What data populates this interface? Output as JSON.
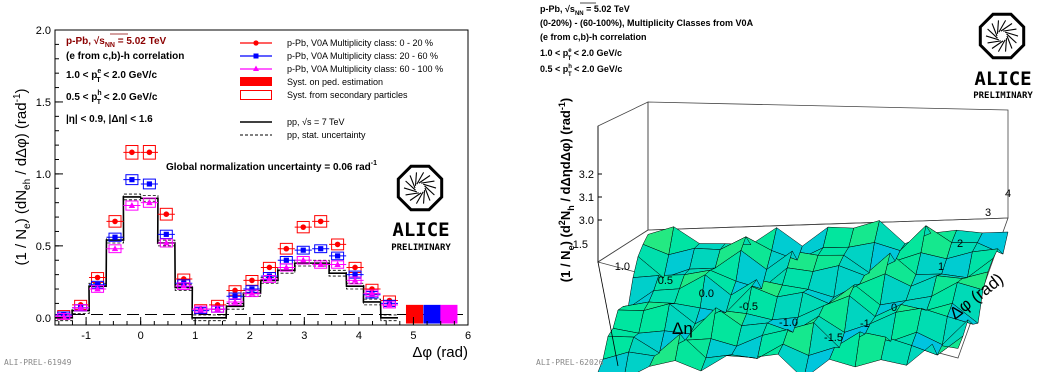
{
  "left_panel": {
    "system_line": "p-Pb, √s",
    "system_sub": "NN",
    "system_energy": " = 5.02 TeV",
    "corr_line": "(e from c,b)-h correlation",
    "pt_e": "1.0 < p",
    "pt_e_sup": "e",
    "pt_e_sub": "T",
    "pt_e_tail": " < 2.0 GeV/c",
    "pt_h": "0.5 < p",
    "pt_h_sup": "h",
    "pt_h_sub": "T",
    "pt_h_tail": " < 2.0 GeV/c",
    "eta_cut": "|η| < 0.9, |Δη| < 1.6",
    "global_norm": "Global normalization uncertainty = 0.06 rad",
    "global_norm_sup": "-1",
    "legend": [
      {
        "label": "p-Pb, V0A Multiplicity class: 0 - 20 %",
        "color": "#ff0000"
      },
      {
        "label": "p-Pb, V0A Multiplicity class: 20 - 60 %",
        "color": "#0000ff"
      },
      {
        "label": "p-Pb, V0A Multiplicity class: 60 - 100 %",
        "color": "#ff00ff"
      },
      {
        "label": "Syst. on ped. estimation",
        "color": "#ff0000"
      },
      {
        "label": "Syst. from secondary particles",
        "color": "#ff0000"
      },
      {
        "label": "pp, √s = 7 TeV",
        "color": "#000000"
      },
      {
        "label": "pp, stat. uncertainty",
        "color": "#000000"
      }
    ],
    "ylabel": "(1 / N",
    "ylabel_sub_e": "e",
    "ylabel_mid": ") (dN",
    "ylabel_sub_eh": "eh",
    "ylabel_tail": " / dΔφ) (rad",
    "ylabel_sup": "-1",
    "ylabel_close": ")",
    "xlabel": "Δφ (rad)",
    "x_ticks": [
      "-1",
      "0",
      "1",
      "2",
      "3",
      "4",
      "5",
      "6"
    ],
    "y_ticks": [
      "0.0",
      "0.5",
      "1.0",
      "1.5",
      "2.0"
    ],
    "footer": "ALI-PREL-61949"
  },
  "right_panel": {
    "system_line": "p-Pb, √s",
    "system_sub": "NN",
    "system_energy": " = 5.02 TeV",
    "subtraction": "(0-20%) - (60-100%), Multiplicity Classes from V0A",
    "corr_line": "(e from c,b)-h correlation",
    "pt_e": "1.0 < p",
    "pt_e_sup": "e",
    "pt_e_sub": "T",
    "pt_e_tail": " < 2.0 GeV/c",
    "pt_h": "0.5 < p",
    "pt_h_sup": "h",
    "pt_h_sub": "T",
    "pt_h_tail": " < 2.0 GeV/c",
    "zlabel": "(1 / N",
    "zlabel_sub_e": "e",
    "zlabel_mid": ") (d",
    "zlabel_sup2": "2",
    "zlabel_tail": "N",
    "zlabel_sub_h": "h",
    "zlabel_end": " / dΔηdΔφ) (rad",
    "zlabel_sup": "-1",
    "zlabel_close": ")",
    "z_ticks": [
      "3.0",
      "3.1",
      "3.2"
    ],
    "eta_label": "Δη",
    "eta_ticks": [
      "1.5",
      "1.0",
      "0.5",
      "0.0",
      "-0.5",
      "-1.0",
      "-1.5"
    ],
    "phi_label": "Δφ (rad)",
    "phi_ticks": [
      "-1",
      "0",
      "1",
      "2",
      "3",
      "4"
    ],
    "footer": "ALI-PREL-62026"
  },
  "logo": {
    "name": "ALICE",
    "tag": "PRELIMINARY"
  },
  "chart_data": [
    {
      "type": "line",
      "title": "",
      "xlabel": "Δφ (rad)",
      "ylabel": "(1 / Ne) (dNeh / dΔφ) (rad-1)",
      "xlim": [
        -1.57,
        6.0
      ],
      "ylim": [
        -0.05,
        2.0
      ],
      "x": [
        -1.41,
        -1.1,
        -0.79,
        -0.47,
        -0.16,
        0.16,
        0.47,
        0.79,
        1.1,
        1.41,
        1.73,
        2.04,
        2.36,
        2.67,
        2.98,
        3.3,
        3.61,
        3.93,
        4.24,
        4.56
      ],
      "series": [
        {
          "name": "p-Pb, V0A Multiplicity class: 0 - 20 %",
          "color": "#ff0000",
          "values": [
            0.02,
            0.09,
            0.28,
            0.67,
            1.15,
            1.15,
            0.72,
            0.27,
            0.06,
            0.09,
            0.19,
            0.26,
            0.35,
            0.48,
            0.63,
            0.67,
            0.51,
            0.35,
            0.2,
            0.12
          ]
        },
        {
          "name": "p-Pb, V0A Multiplicity class: 20 - 60 %",
          "color": "#0000ff",
          "values": [
            0.02,
            0.07,
            0.23,
            0.56,
            0.96,
            0.93,
            0.58,
            0.24,
            0.05,
            0.06,
            0.15,
            0.2,
            0.29,
            0.4,
            0.47,
            0.48,
            0.43,
            0.3,
            0.16,
            0.1
          ]
        },
        {
          "name": "p-Pb, V0A Multiplicity class: 60 - 100 %",
          "color": "#ff00ff",
          "values": [
            0.01,
            0.07,
            0.2,
            0.48,
            0.78,
            0.8,
            0.52,
            0.22,
            0.06,
            0.06,
            0.11,
            0.17,
            0.27,
            0.35,
            0.4,
            0.37,
            0.37,
            0.26,
            0.17,
            0.09
          ]
        },
        {
          "name": "pp, √s = 7 TeV",
          "color": "#000000",
          "style": "step",
          "values": [
            0.0,
            0.05,
            0.22,
            0.54,
            0.84,
            0.83,
            0.52,
            0.21,
            0.0,
            0.0,
            0.08,
            0.17,
            0.26,
            0.33,
            0.38,
            0.38,
            0.31,
            0.22,
            0.11,
            0.0
          ]
        }
      ],
      "pedestal_boxes": {
        "x": [
          5.02,
          5.34,
          5.65
        ],
        "colors": [
          "#ff0000",
          "#0000ff",
          "#ff00ff"
        ]
      }
    },
    {
      "type": "surface",
      "title": "",
      "xlabel": "Δη",
      "ylabel": "Δφ (rad)",
      "zlabel": "(1 / Ne) (d2Nh / dΔηdΔφ) (rad-1)",
      "xlim": [
        -1.6,
        1.6
      ],
      "ylim": [
        -1.57,
        4.71
      ],
      "zlim": [
        2.95,
        3.3
      ]
    }
  ]
}
